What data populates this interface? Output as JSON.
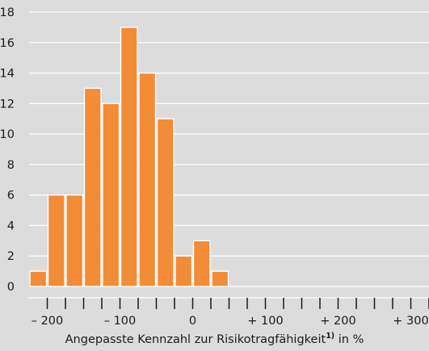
{
  "chart_data": {
    "type": "bar",
    "title": "",
    "xlabel_text": "Angepasste Kennzahl zur Risikotragfähigkeit",
    "xlabel_footnote": "1)",
    "xlabel_unit": "in %",
    "ylabel": "",
    "ylim": [
      0,
      18
    ],
    "yticks": [
      0,
      2,
      4,
      6,
      8,
      10,
      12,
      14,
      16,
      18
    ],
    "xlim": [
      -225,
      325
    ],
    "xticks": [
      -200,
      -175,
      -150,
      -125,
      -100,
      -75,
      -50,
      -25,
      0,
      25,
      50,
      75,
      100,
      125,
      150,
      175,
      200,
      225,
      250,
      275,
      300,
      325
    ],
    "xtick_labels": [
      {
        "value": -200,
        "label": "– 200"
      },
      {
        "value": -100,
        "label": "– 100"
      },
      {
        "value": 0,
        "label": "0"
      },
      {
        "value": 100,
        "label": "+ 100"
      },
      {
        "value": 200,
        "label": "+ 200"
      },
      {
        "value": 300,
        "label": "+ 300"
      }
    ],
    "bin_width": 25,
    "bins": [
      {
        "start": -225,
        "end": -200,
        "value": 1
      },
      {
        "start": -200,
        "end": -175,
        "value": 6
      },
      {
        "start": -175,
        "end": -150,
        "value": 6
      },
      {
        "start": -150,
        "end": -125,
        "value": 13
      },
      {
        "start": -125,
        "end": -100,
        "value": 12
      },
      {
        "start": -100,
        "end": -75,
        "value": 17
      },
      {
        "start": -75,
        "end": -50,
        "value": 14
      },
      {
        "start": -50,
        "end": -25,
        "value": 11
      },
      {
        "start": -25,
        "end": 0,
        "value": 2
      },
      {
        "start": 0,
        "end": 25,
        "value": 3
      },
      {
        "start": 25,
        "end": 50,
        "value": 1
      }
    ],
    "grid": true,
    "legend": "none",
    "colors": {
      "bar": "#f28c36",
      "background": "#dcdcdd",
      "grid": "#ffffff",
      "text": "#1a1a1a"
    }
  }
}
